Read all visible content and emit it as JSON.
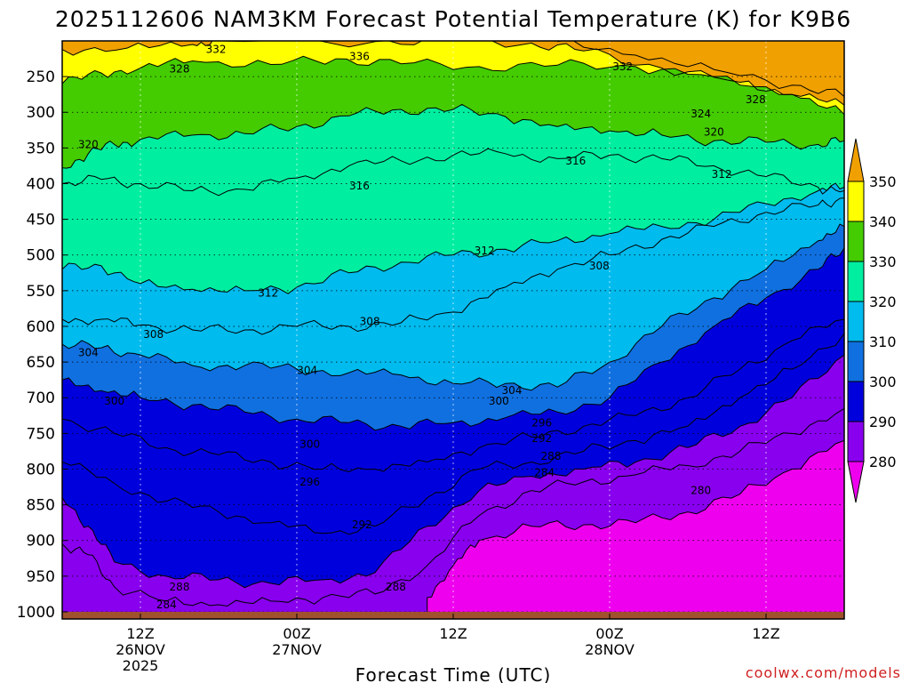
{
  "chart_data": {
    "type": "contour",
    "title": "2025112606 NAM3KM Forecast Potential Temperature (K) for K9B6",
    "xlabel": "Forecast Time (UTC)",
    "ylabel": "",
    "credit": "coolwx.com/models",
    "y_axis": {
      "type": "pressure (hPa)",
      "ticks": [
        "250",
        "300",
        "350",
        "400",
        "450",
        "500",
        "550",
        "600",
        "650",
        "700",
        "750",
        "800",
        "850",
        "900",
        "950",
        "1000"
      ],
      "range": [
        200,
        1010
      ]
    },
    "x_axis": {
      "unit": "forecast hours from 2025-11-26 06Z",
      "range": [
        0,
        60
      ],
      "ticks": [
        {
          "hour": 6,
          "label": "12Z",
          "sub1": "26NOV",
          "sub2": "2025"
        },
        {
          "hour": 18,
          "label": "00Z",
          "sub1": "27NOV",
          "sub2": ""
        },
        {
          "hour": 30,
          "label": "12Z",
          "sub1": "",
          "sub2": ""
        },
        {
          "hour": 42,
          "label": "00Z",
          "sub1": "28NOV",
          "sub2": ""
        },
        {
          "hour": 54,
          "label": "12Z",
          "sub1": "",
          "sub2": ""
        }
      ]
    },
    "colorbar": {
      "levels": [
        "280",
        "290",
        "300",
        "310",
        "320",
        "330",
        "340",
        "350"
      ],
      "bands": [
        {
          "name": "below 280",
          "color": "#ee00ee"
        },
        {
          "name": "280-290",
          "color": "#8800ee"
        },
        {
          "name": "290-300",
          "color": "#0000dd"
        },
        {
          "name": "300-310",
          "color": "#1070e0"
        },
        {
          "name": "310-320",
          "color": "#00bbee"
        },
        {
          "name": "320-330",
          "color": "#00eea0"
        },
        {
          "name": "330-340",
          "color": "#44cc00"
        },
        {
          "name": "340-350",
          "color": "#ffff00"
        },
        {
          "name": "above 350",
          "color": "#f0a000"
        }
      ]
    },
    "contour_interval": 2,
    "ground_color": "#a0522d",
    "isentropes": [
      {
        "theta": 350,
        "points": [
          [
            38,
            201
          ],
          [
            44,
            220
          ],
          [
            50,
            240
          ],
          [
            56,
            262
          ],
          [
            60,
            278
          ]
        ]
      },
      {
        "theta": 340,
        "points": [
          [
            0,
            212
          ],
          [
            5,
            210
          ],
          [
            10,
            205
          ],
          [
            12,
            200
          ],
          [
            24,
            201
          ],
          [
            30,
            200
          ],
          [
            36,
            203
          ],
          [
            40,
            214
          ],
          [
            46,
            238
          ],
          [
            52,
            258
          ],
          [
            56,
            275
          ],
          [
            60,
            290
          ]
        ]
      },
      {
        "theta": 330,
        "points": [
          [
            0,
            260
          ],
          [
            3,
            245
          ],
          [
            6,
            238
          ],
          [
            10,
            228
          ],
          [
            16,
            233
          ],
          [
            21,
            225
          ],
          [
            26,
            232
          ],
          [
            32,
            236
          ],
          [
            38,
            234
          ],
          [
            44,
            236
          ],
          [
            50,
            250
          ],
          [
            56,
            275
          ],
          [
            60,
            303
          ]
        ]
      },
      {
        "theta": 320,
        "points": [
          [
            0,
            378
          ],
          [
            2,
            358
          ],
          [
            4,
            345
          ],
          [
            6,
            338
          ],
          [
            10,
            332
          ],
          [
            14,
            330
          ],
          [
            18,
            320
          ],
          [
            22,
            305
          ],
          [
            26,
            296
          ],
          [
            30,
            296
          ],
          [
            34,
            306
          ],
          [
            38,
            320
          ],
          [
            42,
            326
          ],
          [
            46,
            332
          ],
          [
            50,
            340
          ],
          [
            54,
            342
          ],
          [
            58,
            345
          ],
          [
            60,
            340
          ]
        ]
      },
      {
        "theta": 316,
        "points": [
          [
            0,
            400
          ],
          [
            3,
            394
          ],
          [
            6,
            400
          ],
          [
            10,
            410
          ],
          [
            14,
            408
          ],
          [
            18,
            392
          ],
          [
            22,
            375
          ],
          [
            26,
            368
          ],
          [
            30,
            360
          ],
          [
            34,
            358
          ],
          [
            38,
            365
          ],
          [
            42,
            360
          ],
          [
            46,
            365
          ],
          [
            50,
            375
          ],
          [
            54,
            390
          ],
          [
            58,
            405
          ],
          [
            60,
            410
          ]
        ]
      },
      {
        "theta": 312,
        "points": [
          [
            0,
            520
          ],
          [
            3,
            515
          ],
          [
            6,
            540
          ],
          [
            10,
            548
          ],
          [
            14,
            550
          ],
          [
            18,
            545
          ],
          [
            22,
            525
          ],
          [
            26,
            510
          ],
          [
            30,
            500
          ],
          [
            34,
            492
          ],
          [
            38,
            480
          ],
          [
            42,
            470
          ],
          [
            46,
            460
          ],
          [
            50,
            450
          ],
          [
            54,
            428
          ],
          [
            58,
            410
          ],
          [
            60,
            405
          ]
        ]
      },
      {
        "theta": 308,
        "points": [
          [
            0,
            590
          ],
          [
            3,
            590
          ],
          [
            6,
            598
          ],
          [
            10,
            605
          ],
          [
            14,
            605
          ],
          [
            18,
            600
          ],
          [
            22,
            600
          ],
          [
            26,
            595
          ],
          [
            30,
            580
          ],
          [
            34,
            545
          ],
          [
            38,
            520
          ],
          [
            42,
            500
          ],
          [
            46,
            478
          ],
          [
            50,
            460
          ],
          [
            54,
            440
          ],
          [
            58,
            430
          ],
          [
            60,
            420
          ]
        ]
      },
      {
        "theta": 304,
        "points": [
          [
            0,
            625
          ],
          [
            3,
            630
          ],
          [
            6,
            640
          ],
          [
            10,
            655
          ],
          [
            14,
            655
          ],
          [
            18,
            660
          ],
          [
            22,
            665
          ],
          [
            26,
            668
          ],
          [
            30,
            680
          ],
          [
            34,
            680
          ],
          [
            38,
            685
          ],
          [
            42,
            650
          ],
          [
            46,
            600
          ],
          [
            50,
            560
          ],
          [
            54,
            520
          ],
          [
            58,
            480
          ],
          [
            60,
            460
          ]
        ]
      },
      {
        "theta": 300,
        "points": [
          [
            0,
            675
          ],
          [
            3,
            690
          ],
          [
            6,
            700
          ],
          [
            10,
            710
          ],
          [
            14,
            720
          ],
          [
            18,
            730
          ],
          [
            22,
            735
          ],
          [
            26,
            740
          ],
          [
            30,
            735
          ],
          [
            34,
            728
          ],
          [
            38,
            720
          ],
          [
            42,
            700
          ],
          [
            46,
            650
          ],
          [
            50,
            600
          ],
          [
            54,
            560
          ],
          [
            58,
            520
          ],
          [
            60,
            490
          ]
        ]
      },
      {
        "theta": 296,
        "points": [
          [
            0,
            730
          ],
          [
            4,
            750
          ],
          [
            8,
            770
          ],
          [
            12,
            780
          ],
          [
            16,
            790
          ],
          [
            20,
            800
          ],
          [
            24,
            800
          ],
          [
            28,
            790
          ],
          [
            32,
            770
          ],
          [
            36,
            755
          ],
          [
            40,
            740
          ],
          [
            44,
            725
          ],
          [
            48,
            700
          ],
          [
            52,
            660
          ],
          [
            56,
            620
          ],
          [
            60,
            590
          ]
        ]
      },
      {
        "theta": 292,
        "points": [
          [
            0,
            790
          ],
          [
            4,
            820
          ],
          [
            8,
            845
          ],
          [
            12,
            860
          ],
          [
            16,
            875
          ],
          [
            20,
            890
          ],
          [
            24,
            880
          ],
          [
            28,
            840
          ],
          [
            32,
            800
          ],
          [
            36,
            790
          ],
          [
            40,
            775
          ],
          [
            44,
            760
          ],
          [
            48,
            740
          ],
          [
            52,
            700
          ],
          [
            56,
            660
          ],
          [
            60,
            610
          ]
        ]
      },
      {
        "theta": 288,
        "points": [
          [
            0,
            840
          ],
          [
            2,
            880
          ],
          [
            4,
            930
          ],
          [
            8,
            950
          ],
          [
            12,
            955
          ],
          [
            16,
            960
          ],
          [
            20,
            955
          ],
          [
            24,
            945
          ],
          [
            28,
            880
          ],
          [
            32,
            830
          ],
          [
            36,
            810
          ],
          [
            40,
            800
          ],
          [
            44,
            790
          ],
          [
            48,
            770
          ],
          [
            52,
            740
          ],
          [
            56,
            700
          ],
          [
            60,
            640
          ]
        ]
      },
      {
        "theta": 284,
        "points": [
          [
            0,
            905
          ],
          [
            2,
            920
          ],
          [
            4,
            965
          ],
          [
            8,
            985
          ],
          [
            12,
            990
          ],
          [
            16,
            985
          ],
          [
            20,
            980
          ],
          [
            24,
            975
          ],
          [
            28,
            935
          ],
          [
            32,
            865
          ],
          [
            36,
            830
          ],
          [
            40,
            818
          ],
          [
            44,
            808
          ],
          [
            48,
            795
          ],
          [
            52,
            775
          ],
          [
            56,
            750
          ],
          [
            60,
            715
          ]
        ]
      },
      {
        "theta": 280,
        "points": [
          [
            28,
            1010
          ],
          [
            28,
            980
          ],
          [
            30,
            935
          ],
          [
            32,
            900
          ],
          [
            36,
            880
          ],
          [
            40,
            878
          ],
          [
            44,
            875
          ],
          [
            48,
            860
          ],
          [
            52,
            835
          ],
          [
            56,
            800
          ],
          [
            60,
            760
          ]
        ]
      }
    ],
    "contour_labels": [
      {
        "text": "332",
        "h": 11.8,
        "p": 212
      },
      {
        "text": "336",
        "h": 22.8,
        "p": 222
      },
      {
        "text": "332",
        "h": 43,
        "p": 236
      },
      {
        "text": "328",
        "h": 9,
        "p": 239
      },
      {
        "text": "328",
        "h": 53.2,
        "p": 282
      },
      {
        "text": "324",
        "h": 49,
        "p": 302
      },
      {
        "text": "320",
        "h": 50,
        "p": 328
      },
      {
        "text": "320",
        "h": 2,
        "p": 345
      },
      {
        "text": "316",
        "h": 39.4,
        "p": 368
      },
      {
        "text": "312",
        "h": 50.6,
        "p": 387
      },
      {
        "text": "316",
        "h": 22.8,
        "p": 403
      },
      {
        "text": "312",
        "h": 32.4,
        "p": 494
      },
      {
        "text": "308",
        "h": 41.2,
        "p": 515
      },
      {
        "text": "312",
        "h": 15.8,
        "p": 553
      },
      {
        "text": "308",
        "h": 23.6,
        "p": 593
      },
      {
        "text": "308",
        "h": 7,
        "p": 611
      },
      {
        "text": "304",
        "h": 2,
        "p": 637
      },
      {
        "text": "304",
        "h": 18.8,
        "p": 662
      },
      {
        "text": "304",
        "h": 34.5,
        "p": 690
      },
      {
        "text": "300",
        "h": 4,
        "p": 705
      },
      {
        "text": "300",
        "h": 33.5,
        "p": 705
      },
      {
        "text": "296",
        "h": 36.8,
        "p": 735
      },
      {
        "text": "292",
        "h": 36.8,
        "p": 757
      },
      {
        "text": "300",
        "h": 19,
        "p": 765
      },
      {
        "text": "288",
        "h": 37.5,
        "p": 782
      },
      {
        "text": "284",
        "h": 37,
        "p": 805
      },
      {
        "text": "296",
        "h": 19,
        "p": 818
      },
      {
        "text": "280",
        "h": 49,
        "p": 830
      },
      {
        "text": "292",
        "h": 23,
        "p": 878
      },
      {
        "text": "288",
        "h": 25.6,
        "p": 965
      },
      {
        "text": "288",
        "h": 9,
        "p": 965
      },
      {
        "text": "284",
        "h": 8,
        "p": 990
      }
    ]
  }
}
